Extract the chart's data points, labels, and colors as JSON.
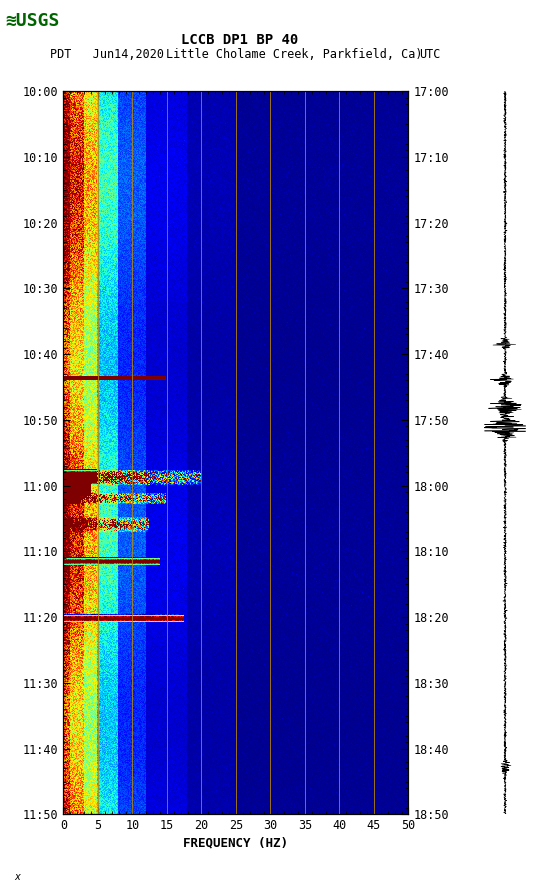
{
  "title_line1": "LCCB DP1 BP 40",
  "title_line2_pdt": "PDT   Jun14,2020",
  "title_line2_loc": "Little Cholame Creek, Parkfield, Ca)",
  "title_line2_utc": "UTC",
  "xlabel": "FREQUENCY (HZ)",
  "freq_min": 0,
  "freq_max": 50,
  "freq_ticks": [
    0,
    5,
    10,
    15,
    20,
    25,
    30,
    35,
    40,
    45,
    50
  ],
  "time_ticks_pdt": [
    "10:00",
    "10:10",
    "10:20",
    "10:30",
    "10:40",
    "10:50",
    "11:00",
    "11:10",
    "11:20",
    "11:30",
    "11:40",
    "11:50"
  ],
  "time_ticks_utc": [
    "17:00",
    "17:10",
    "17:20",
    "17:30",
    "17:40",
    "17:50",
    "18:00",
    "18:10",
    "18:20",
    "18:30",
    "18:40",
    "18:50"
  ],
  "colormap": "jet",
  "background_color": "#ffffff",
  "vline_color": "#b8860b",
  "vline_positions": [
    5,
    10,
    15,
    20,
    25,
    30,
    35,
    40,
    45
  ],
  "logo_color": "#006400",
  "n_time": 720,
  "n_freq": 500,
  "spectrogram_seed": 12345
}
